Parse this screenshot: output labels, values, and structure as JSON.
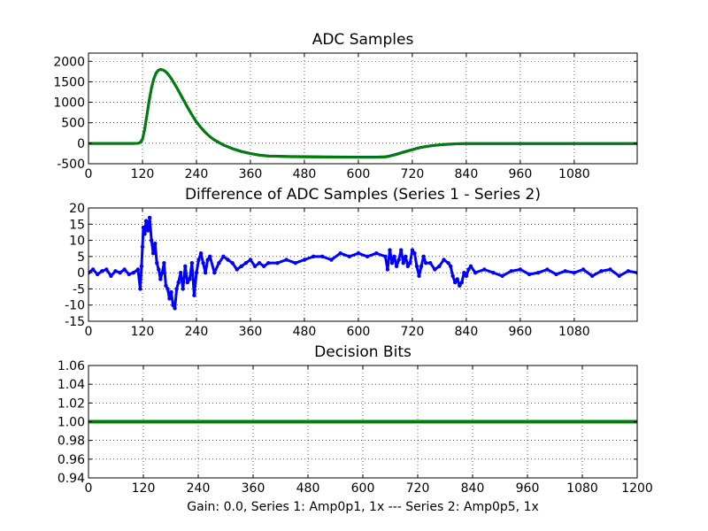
{
  "figure": {
    "footer_text": "Gain: 0.0, Series 1: Amp0p1, 1x --- Series 2: Amp0p5, 1x"
  },
  "chart_data": [
    {
      "type": "line",
      "title": "ADC Samples",
      "xlabel": "",
      "ylabel": "",
      "xlim": [
        0,
        1220
      ],
      "ylim": [
        -500,
        2200
      ],
      "xticks": [
        0,
        120,
        240,
        360,
        480,
        600,
        720,
        840,
        960,
        1080
      ],
      "yticks": [
        -500,
        0,
        500,
        1000,
        1500,
        2000
      ],
      "grid": true,
      "legend": "none",
      "series": [
        {
          "color": "#0000ff",
          "marker": "dot",
          "x": [
            0,
            100,
            110,
            115,
            120,
            125,
            130,
            135,
            140,
            145,
            150,
            155,
            160,
            165,
            170,
            175,
            180,
            185,
            190,
            195,
            200,
            210,
            220,
            230,
            240,
            250,
            260,
            270,
            280,
            290,
            300,
            320,
            340,
            360,
            380,
            400,
            450,
            500,
            550,
            600,
            640,
            660,
            670,
            680,
            690,
            700,
            710,
            720,
            730,
            740,
            760,
            780,
            800,
            820,
            840,
            900,
            1000,
            1100,
            1220
          ],
          "y": [
            -5,
            -5,
            0,
            20,
            100,
            350,
            700,
            1050,
            1350,
            1570,
            1710,
            1780,
            1800,
            1790,
            1760,
            1710,
            1640,
            1560,
            1470,
            1380,
            1280,
            1080,
            880,
            690,
            520,
            380,
            260,
            160,
            80,
            20,
            -40,
            -130,
            -200,
            -250,
            -290,
            -310,
            -325,
            -330,
            -335,
            -338,
            -338,
            -330,
            -310,
            -280,
            -250,
            -215,
            -185,
            -155,
            -125,
            -100,
            -65,
            -40,
            -25,
            -15,
            -10,
            -10,
            -10,
            -10,
            -10
          ]
        },
        {
          "color": "#008000",
          "marker": "dot",
          "x": [
            0,
            100,
            110,
            115,
            120,
            125,
            130,
            135,
            140,
            145,
            150,
            155,
            160,
            165,
            170,
            175,
            180,
            185,
            190,
            195,
            200,
            210,
            220,
            230,
            240,
            250,
            260,
            270,
            280,
            290,
            300,
            320,
            340,
            360,
            380,
            400,
            450,
            500,
            550,
            600,
            640,
            660,
            670,
            680,
            690,
            700,
            710,
            720,
            730,
            740,
            760,
            780,
            800,
            820,
            840,
            900,
            1000,
            1100,
            1220
          ],
          "y": [
            -5,
            -5,
            0,
            15,
            90,
            340,
            690,
            1040,
            1340,
            1560,
            1700,
            1775,
            1800,
            1790,
            1760,
            1712,
            1645,
            1565,
            1475,
            1385,
            1285,
            1085,
            885,
            695,
            525,
            385,
            262,
            160,
            78,
            16,
            -44,
            -134,
            -204,
            -253,
            -292,
            -313,
            -329,
            -335,
            -340,
            -343,
            -342,
            -335,
            -316,
            -287,
            -257,
            -222,
            -191,
            -160,
            -128,
            -100,
            -63,
            -37,
            -20,
            -12,
            -10,
            -10,
            -10,
            -10,
            -10
          ]
        }
      ]
    },
    {
      "type": "line",
      "title": "Difference of ADC Samples (Series 1 - Series 2)",
      "xlabel": "",
      "ylabel": "",
      "xlim": [
        0,
        1220
      ],
      "ylim": [
        -15,
        20
      ],
      "xticks": [
        0,
        120,
        240,
        360,
        480,
        600,
        720,
        840,
        960,
        1080
      ],
      "yticks": [
        -15,
        -10,
        -5,
        0,
        5,
        10,
        15,
        20
      ],
      "grid": true,
      "legend": "none",
      "series": [
        {
          "color": "#0000ff",
          "marker": "dot",
          "x": [
            0,
            10,
            20,
            30,
            40,
            50,
            60,
            70,
            80,
            90,
            100,
            110,
            115,
            118,
            120,
            122,
            125,
            128,
            132,
            136,
            140,
            144,
            148,
            152,
            156,
            160,
            164,
            168,
            172,
            176,
            180,
            184,
            188,
            192,
            196,
            200,
            205,
            210,
            215,
            220,
            225,
            230,
            235,
            240,
            245,
            250,
            255,
            260,
            265,
            270,
            280,
            290,
            300,
            310,
            320,
            330,
            340,
            350,
            360,
            370,
            380,
            390,
            400,
            420,
            440,
            460,
            480,
            500,
            520,
            540,
            560,
            580,
            600,
            620,
            640,
            660,
            665,
            670,
            675,
            680,
            685,
            690,
            695,
            700,
            705,
            710,
            715,
            720,
            725,
            730,
            735,
            740,
            745,
            750,
            760,
            770,
            780,
            790,
            800,
            805,
            810,
            815,
            820,
            825,
            830,
            835,
            840,
            845,
            850,
            860,
            880,
            900,
            920,
            940,
            960,
            980,
            1000,
            1020,
            1040,
            1060,
            1080,
            1100,
            1120,
            1140,
            1160,
            1180,
            1200,
            1220
          ],
          "y": [
            0,
            1,
            -0.5,
            0.5,
            1,
            -1,
            0.5,
            0,
            1,
            -0.5,
            0,
            1,
            -5,
            2,
            8,
            14,
            12,
            16,
            13,
            17,
            10,
            6,
            9,
            3,
            1,
            -2,
            0,
            3,
            -4,
            -5,
            -8,
            -6,
            -10,
            -11,
            -5,
            -3,
            0,
            -5,
            2,
            -3,
            -2,
            3,
            -7,
            0,
            4,
            6,
            3,
            0,
            4,
            5,
            0,
            3,
            5,
            4,
            3,
            1,
            2,
            3,
            4,
            2,
            3,
            2,
            3,
            3,
            4,
            3,
            4,
            5,
            5,
            4,
            6,
            5,
            6,
            5,
            6,
            5,
            1,
            7,
            3,
            5,
            2,
            4,
            7,
            3,
            5,
            2,
            3,
            7,
            6,
            2,
            -1,
            2,
            5,
            3,
            3,
            1,
            2,
            4,
            3,
            2,
            -1,
            -3,
            -2,
            -4,
            -3,
            0,
            -1,
            1,
            2,
            0,
            1,
            0,
            -1,
            0.5,
            1,
            -0.5,
            0,
            1,
            -0.5,
            0.5,
            0,
            1,
            -1,
            0.5,
            1,
            -1,
            0.5,
            0
          ]
        }
      ]
    },
    {
      "type": "line",
      "title": "Decision Bits",
      "xlabel": "",
      "ylabel": "",
      "xlim": [
        0,
        1200
      ],
      "ylim": [
        0.94,
        1.06
      ],
      "xticks": [
        0,
        120,
        240,
        360,
        480,
        600,
        720,
        840,
        960,
        1080,
        1200
      ],
      "yticks": [
        0.94,
        0.96,
        0.98,
        1.0,
        1.02,
        1.04,
        1.06
      ],
      "grid": true,
      "legend": "none",
      "series": [
        {
          "color": "#008000",
          "marker": "dot",
          "x": [
            0,
            1200
          ],
          "y": [
            1.0,
            1.0
          ]
        }
      ]
    }
  ]
}
